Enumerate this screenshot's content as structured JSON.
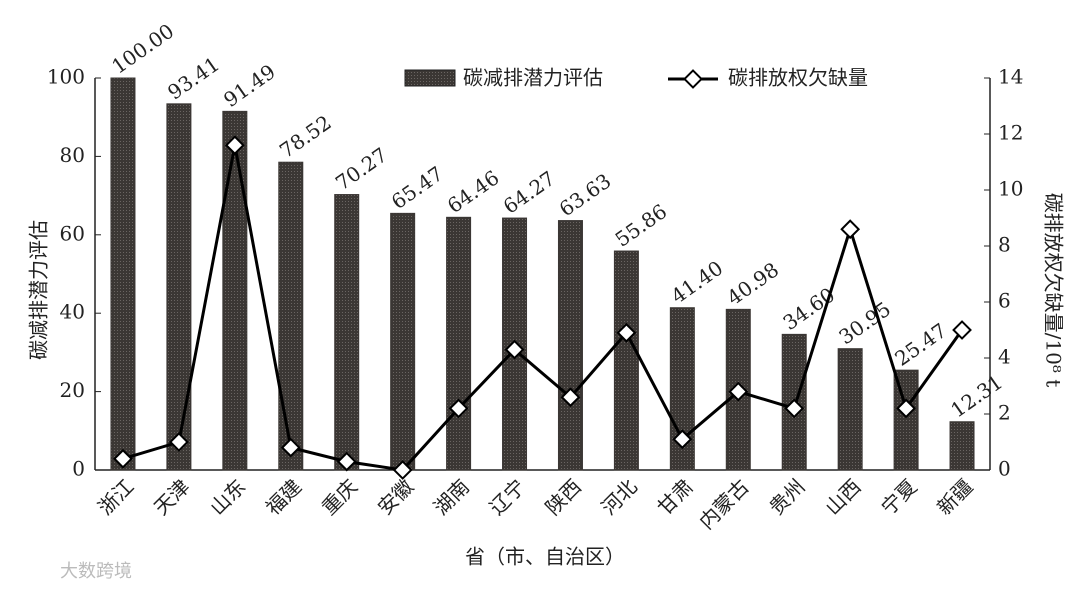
{
  "chart_data": {
    "type": "bar_line",
    "categories": [
      "浙江",
      "天津",
      "山东",
      "福建",
      "重庆",
      "安徽",
      "湖南",
      "辽宁",
      "陕西",
      "河北",
      "甘肃",
      "内蒙古",
      "贵州",
      "山西",
      "宁夏",
      "新疆"
    ],
    "series": [
      {
        "name": "碳减排潜力评估",
        "type": "bar",
        "color": "#3b3734",
        "values": [
          100,
          93.41,
          91.49,
          78.52,
          70.27,
          65.47,
          64.46,
          64.27,
          63.63,
          55.86,
          41.4,
          40.98,
          34.6,
          30.95,
          25.47,
          12.31
        ],
        "value_labels": [
          "100.00",
          "93.41",
          "91.49",
          "78.52",
          "70.27",
          "65.47",
          "64.46",
          "64.27",
          "63.63",
          "55.86",
          "41.40",
          "40.98",
          "34.60",
          "30.95",
          "25.47",
          "12.31"
        ]
      },
      {
        "name": "碳排放权欠缺量",
        "type": "line",
        "axis": "y2",
        "color": "#000000",
        "values": [
          0.4,
          1.0,
          11.6,
          0.8,
          0.3,
          0,
          2.2,
          4.3,
          2.6,
          4.9,
          1.1,
          2.8,
          2.2,
          8.6,
          2.2,
          5.0
        ]
      }
    ],
    "ylabel": "碳减排潜力评估",
    "y2label": "碳排放权欠缺量/10⁸ t",
    "xlabel": "省（市、自治区）",
    "ylim": [
      0,
      100
    ],
    "yticks": [
      0,
      20,
      40,
      60,
      80,
      100
    ],
    "y2lim": [
      0,
      14
    ],
    "y2ticks": [
      0,
      2,
      4,
      6,
      8,
      10,
      12,
      14
    ],
    "watermark": "大数跨境"
  }
}
